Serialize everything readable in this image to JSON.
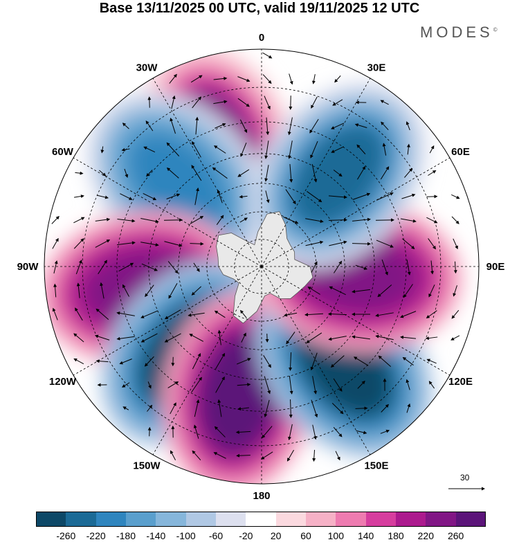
{
  "header": {
    "title": "Base 13/11/2025 00 UTC, valid 19/11/2025 12 UTC",
    "brand": "MODES",
    "brand_mark": "©"
  },
  "map": {
    "projection": "south-polar-stereographic",
    "longitude_labels": [
      "0",
      "30E",
      "60E",
      "90E",
      "120E",
      "150E",
      "180",
      "150W",
      "120W",
      "90W",
      "60W",
      "30W"
    ],
    "label_bearings_deg": [
      0,
      30,
      60,
      90,
      120,
      150,
      180,
      210,
      240,
      270,
      300,
      330
    ],
    "latitude_circles_deg": [
      -80,
      -70,
      -60,
      -50,
      -40,
      -30
    ],
    "anomaly_centres": [
      {
        "sign": "positive",
        "lon": 20,
        "lat": -45,
        "value": 240
      },
      {
        "sign": "negative",
        "lon": 45,
        "lat": -48,
        "value": -200
      },
      {
        "sign": "positive",
        "lon": 100,
        "lat": -47,
        "value": 250
      },
      {
        "sign": "negative",
        "lon": 140,
        "lat": -50,
        "value": -260
      },
      {
        "sign": "positive",
        "lon": 170,
        "lat": -45,
        "value": 270
      },
      {
        "sign": "negative",
        "lon": -140,
        "lat": -45,
        "value": -260
      },
      {
        "sign": "positive",
        "lon": -95,
        "lat": -55,
        "value": 250
      },
      {
        "sign": "negative",
        "lon": -40,
        "lat": -48,
        "value": -230
      }
    ],
    "reference_vector": "30"
  },
  "colorbar": {
    "ticks": [
      "-260",
      "-220",
      "-180",
      "-140",
      "-100",
      "-60",
      "-20",
      "20",
      "60",
      "100",
      "140",
      "180",
      "220",
      "260"
    ],
    "colors": [
      "#0d4867",
      "#1b6a96",
      "#2f85be",
      "#5a9fcd",
      "#86b6db",
      "#b0c8e4",
      "#dde0ef",
      "#ffffff",
      "#fbd9df",
      "#f6b1c6",
      "#ee7bb0",
      "#d63d9e",
      "#ac1a8e",
      "#811685",
      "#5b1479"
    ]
  }
}
